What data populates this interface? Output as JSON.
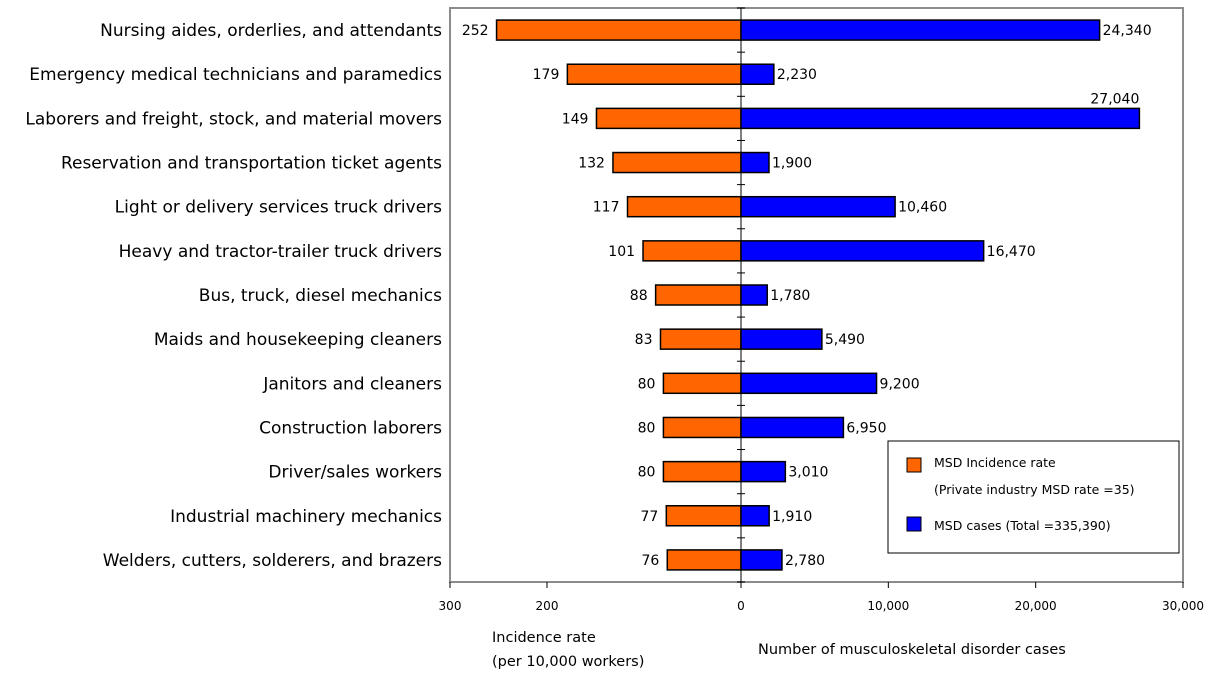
{
  "chart_data": {
    "type": "bar",
    "orientation": "horizontal",
    "layout": "diverging",
    "categories": [
      "Nursing aides, orderlies, and attendants",
      "Emergency medical technicians and paramedics",
      "Laborers and freight, stock, and material movers",
      "Reservation and transportation ticket agents",
      "Light or delivery services truck drivers",
      "Heavy and tractor-trailer truck drivers",
      "Bus, truck, diesel mechanics",
      "Maids and housekeeping  cleaners",
      "Janitors and cleaners",
      "Construction laborers",
      "Driver/sales workers",
      "Industrial machinery mechanics",
      "Welders, cutters, solderers, and brazers"
    ],
    "series": [
      {
        "name": "MSD Incidence rate",
        "color": "#ff6600",
        "side": "left",
        "values": [
          252,
          179,
          149,
          132,
          117,
          101,
          88,
          83,
          80,
          80,
          80,
          77,
          76
        ],
        "value_labels": [
          "252",
          "179",
          "149",
          "132",
          "117",
          "101",
          "88",
          "83",
          "80",
          "80",
          "80",
          "77",
          "76"
        ]
      },
      {
        "name": "MSD cases",
        "color": "#0000ff",
        "side": "right",
        "values": [
          24340,
          2230,
          27040,
          1900,
          10460,
          16470,
          1780,
          5490,
          9200,
          6950,
          3010,
          1910,
          2780
        ],
        "value_labels": [
          "24,340",
          "2,230",
          "27,040",
          "1,900",
          "10,460",
          "16,470",
          "1,780",
          "5,490",
          "9,200",
          "6,950",
          "3,010",
          "1,910",
          "2,780"
        ]
      }
    ],
    "left_axis": {
      "range": [
        0,
        300
      ],
      "tick_labels": [
        "300",
        "200",
        "0"
      ],
      "label_line1": "Incidence rate",
      "label_line2": "(per 10,000 workers)"
    },
    "right_axis": {
      "range": [
        0,
        30000
      ],
      "tick_labels": [
        "10,000",
        "20,000",
        "30,000"
      ],
      "label": "Number of musculoskeletal disorder cases"
    },
    "legend": {
      "placement": "bottom-right",
      "entries": [
        {
          "line1": "MSD Incidence rate",
          "line2": "(Private industry MSD rate =35)",
          "color": "#ff6600"
        },
        {
          "line1": "MSD cases (Total =335,390)",
          "color": "#0000ff"
        }
      ]
    },
    "grid": false
  }
}
